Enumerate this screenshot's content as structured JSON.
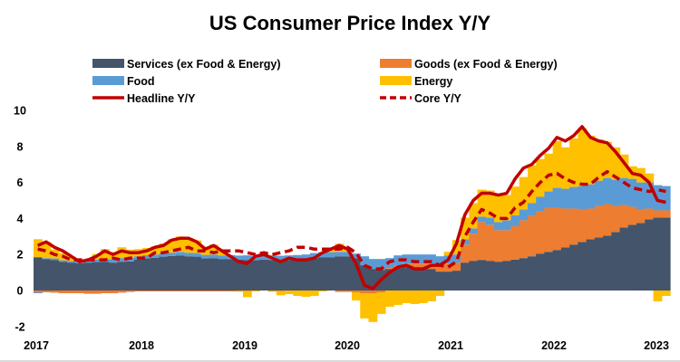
{
  "chart_data": {
    "type": "bar",
    "subtype": "stacked-bar-with-lines",
    "title": "US Consumer Price Index Y/Y",
    "xlabel": "",
    "ylabel": "",
    "ylim": [
      -2,
      10
    ],
    "yticks": [
      10,
      8,
      6,
      4,
      2,
      0,
      -2
    ],
    "xtick_labels": [
      "2017",
      "2018",
      "2019",
      "2020",
      "2021",
      "2022",
      "2023"
    ],
    "grid": false,
    "legend_placement": "top",
    "period": "monthly, Jan 2017 - Apr 2023",
    "legend": [
      {
        "key": "services",
        "label": "Services (ex Food & Energy)",
        "kind": "bar",
        "color": "#44546A"
      },
      {
        "key": "goods",
        "label": "Goods (ex Food & Energy)",
        "kind": "bar",
        "color": "#ED7D31"
      },
      {
        "key": "food",
        "label": "Food",
        "kind": "bar",
        "color": "#5B9BD5"
      },
      {
        "key": "energy",
        "label": "Energy",
        "kind": "bar",
        "color": "#FFC000"
      },
      {
        "key": "headline",
        "label": "Headline Y/Y",
        "kind": "line",
        "color": "#C00000"
      },
      {
        "key": "core",
        "label": "Core Y/Y",
        "kind": "dashed-line",
        "color": "#C00000"
      }
    ],
    "series": [
      {
        "name": "Services (ex Food & Energy)",
        "key": "services",
        "values": [
          1.85,
          1.75,
          1.7,
          1.6,
          1.55,
          1.52,
          1.55,
          1.58,
          1.6,
          1.55,
          1.6,
          1.62,
          1.72,
          1.78,
          1.82,
          1.88,
          1.92,
          1.95,
          1.9,
          1.88,
          1.78,
          1.8,
          1.75,
          1.75,
          1.72,
          1.7,
          1.68,
          1.72,
          1.7,
          1.68,
          1.7,
          1.72,
          1.75,
          1.8,
          1.85,
          1.85,
          1.9,
          1.9,
          1.8,
          1.4,
          1.2,
          1.15,
          1.2,
          1.25,
          1.3,
          1.3,
          1.3,
          1.2,
          1.05,
          1.05,
          1.1,
          1.55,
          1.65,
          1.7,
          1.65,
          1.6,
          1.65,
          1.72,
          1.8,
          1.9,
          2.05,
          2.15,
          2.25,
          2.4,
          2.55,
          2.7,
          2.85,
          2.95,
          3.05,
          3.25,
          3.5,
          3.65,
          3.75,
          3.95,
          4.05,
          4.05
        ]
      },
      {
        "name": "Goods (ex Food & Energy)",
        "key": "goods",
        "values": [
          -0.1,
          -0.1,
          -0.12,
          -0.15,
          -0.15,
          -0.15,
          -0.18,
          -0.18,
          -0.15,
          -0.15,
          -0.12,
          -0.08,
          -0.05,
          -0.05,
          -0.05,
          -0.05,
          -0.05,
          -0.05,
          -0.05,
          -0.05,
          -0.05,
          -0.05,
          -0.05,
          -0.05,
          -0.02,
          -0.02,
          0.0,
          0.0,
          -0.02,
          -0.02,
          0.0,
          0.0,
          0.0,
          0.0,
          0.0,
          0.0,
          -0.08,
          -0.08,
          -0.1,
          -0.15,
          -0.15,
          -0.1,
          0.05,
          0.15,
          0.2,
          0.2,
          0.2,
          0.3,
          0.35,
          0.45,
          0.45,
          1.0,
          1.5,
          2.1,
          2.0,
          1.75,
          1.7,
          1.85,
          2.1,
          2.25,
          2.35,
          2.45,
          2.35,
          2.15,
          2.0,
          1.8,
          1.7,
          1.75,
          1.75,
          1.45,
          1.25,
          1.0,
          0.75,
          0.6,
          0.4,
          0.4
        ]
      },
      {
        "name": "Food",
        "key": "food",
        "values": [
          -0.05,
          0.05,
          0.08,
          0.08,
          0.08,
          0.12,
          0.15,
          0.15,
          0.15,
          0.18,
          0.2,
          0.2,
          0.18,
          0.18,
          0.18,
          0.18,
          0.18,
          0.2,
          0.2,
          0.2,
          0.2,
          0.2,
          0.2,
          0.22,
          0.22,
          0.25,
          0.25,
          0.25,
          0.25,
          0.25,
          0.25,
          0.25,
          0.25,
          0.28,
          0.28,
          0.28,
          0.25,
          0.25,
          0.25,
          0.5,
          0.55,
          0.6,
          0.55,
          0.55,
          0.5,
          0.5,
          0.5,
          0.5,
          0.5,
          0.45,
          0.45,
          0.3,
          0.3,
          0.3,
          0.4,
          0.45,
          0.55,
          0.6,
          0.6,
          0.7,
          0.8,
          0.9,
          1.1,
          1.1,
          1.2,
          1.3,
          1.35,
          1.4,
          1.45,
          1.45,
          1.5,
          1.55,
          1.5,
          1.45,
          1.4,
          1.35
        ]
      },
      {
        "name": "Energy",
        "key": "energy",
        "values": [
          1.0,
          0.9,
          0.5,
          0.4,
          0.25,
          0.1,
          0.05,
          0.3,
          0.55,
          0.4,
          0.6,
          0.45,
          0.4,
          0.4,
          0.45,
          0.55,
          0.75,
          0.85,
          0.8,
          0.7,
          0.45,
          0.55,
          0.25,
          0.0,
          -0.05,
          -0.35,
          -0.05,
          0.1,
          -0.05,
          -0.25,
          -0.2,
          -0.3,
          -0.35,
          -0.3,
          -0.05,
          0.2,
          0.45,
          0.2,
          -0.45,
          -1.4,
          -1.6,
          -1.2,
          -0.9,
          -0.8,
          -0.7,
          -0.75,
          -0.7,
          -0.6,
          -0.3,
          0.2,
          0.8,
          1.2,
          1.4,
          1.5,
          1.5,
          1.5,
          1.4,
          1.6,
          1.8,
          2.1,
          2.1,
          2.1,
          2.6,
          2.3,
          2.7,
          3.2,
          2.7,
          2.3,
          2.0,
          1.8,
          1.3,
          0.7,
          0.8,
          0.5,
          -0.6,
          -0.3
        ]
      },
      {
        "name": "Headline Y/Y",
        "key": "headline",
        "values": [
          2.5,
          2.7,
          2.4,
          2.2,
          1.9,
          1.6,
          1.7,
          1.9,
          2.2,
          2.0,
          2.2,
          2.1,
          2.1,
          2.2,
          2.4,
          2.5,
          2.8,
          2.9,
          2.9,
          2.7,
          2.3,
          2.5,
          2.2,
          1.9,
          1.6,
          1.5,
          1.9,
          2.0,
          1.8,
          1.6,
          1.8,
          1.7,
          1.7,
          1.8,
          2.1,
          2.3,
          2.5,
          2.3,
          1.5,
          0.3,
          0.1,
          0.6,
          1.0,
          1.3,
          1.4,
          1.2,
          1.2,
          1.4,
          1.4,
          1.7,
          2.6,
          4.2,
          5.0,
          5.4,
          5.4,
          5.3,
          5.4,
          6.2,
          6.8,
          7.0,
          7.5,
          7.9,
          8.5,
          8.3,
          8.6,
          9.1,
          8.5,
          8.3,
          8.2,
          7.7,
          7.1,
          6.5,
          6.4,
          6.0,
          5.0,
          4.9
        ]
      },
      {
        "name": "Core Y/Y",
        "key": "core",
        "values": [
          2.3,
          2.2,
          2.0,
          1.9,
          1.7,
          1.7,
          1.7,
          1.7,
          1.7,
          1.8,
          1.7,
          1.8,
          1.8,
          1.8,
          2.1,
          2.1,
          2.2,
          2.3,
          2.4,
          2.2,
          2.2,
          2.1,
          2.2,
          2.2,
          2.2,
          2.1,
          2.0,
          2.1,
          2.0,
          2.1,
          2.2,
          2.4,
          2.4,
          2.3,
          2.3,
          2.3,
          2.3,
          2.4,
          2.1,
          1.4,
          1.2,
          1.2,
          1.6,
          1.7,
          1.7,
          1.6,
          1.6,
          1.6,
          1.4,
          1.3,
          1.6,
          3.0,
          3.8,
          4.5,
          4.3,
          4.0,
          4.0,
          4.6,
          4.9,
          5.5,
          6.0,
          6.4,
          6.5,
          6.2,
          6.0,
          5.9,
          5.9,
          6.3,
          6.6,
          6.3,
          6.0,
          5.7,
          5.6,
          5.5,
          5.6,
          5.5
        ]
      }
    ]
  }
}
